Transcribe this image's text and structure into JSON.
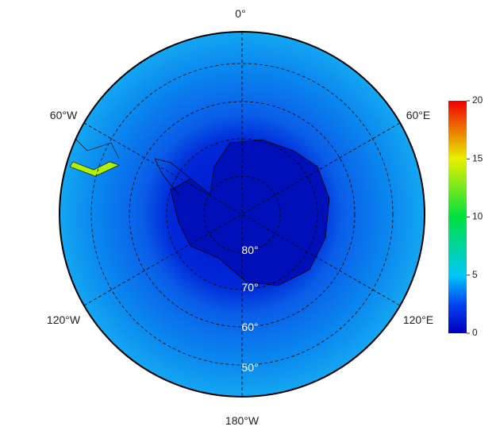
{
  "map": {
    "lon_labels": [
      "0°",
      "60°E",
      "120°E",
      "180°W",
      "120°W",
      "60°W"
    ],
    "lat_labels": [
      "80°",
      "70°",
      "60°",
      "50°"
    ]
  },
  "colorbar": {
    "lim": [
      0,
      20
    ],
    "ticks": [
      0,
      5,
      10,
      15,
      20
    ]
  }
}
